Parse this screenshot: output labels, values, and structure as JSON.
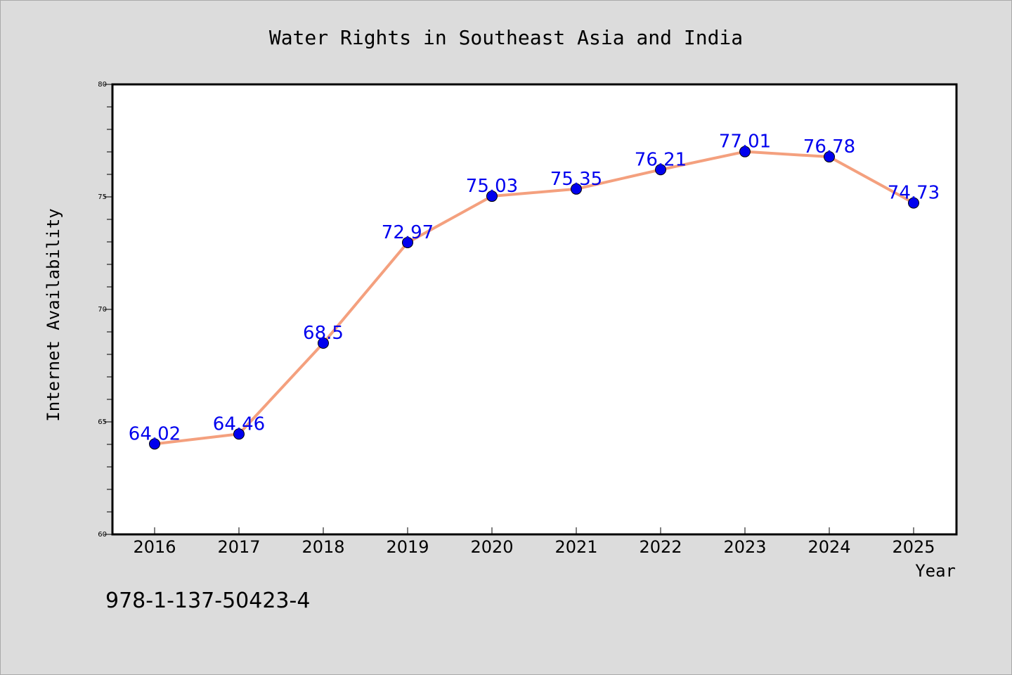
{
  "chart_data": {
    "type": "line",
    "title": "Water Rights in Southeast Asia and India",
    "xlabel": "Year",
    "ylabel": "Internet Availability",
    "categories": [
      "2016",
      "2017",
      "2018",
      "2019",
      "2020",
      "2021",
      "2022",
      "2023",
      "2024",
      "2025"
    ],
    "series": [
      {
        "values": [
          64.02,
          64.46,
          68.5,
          72.97,
          75.03,
          75.35,
          76.21,
          77.01,
          76.78,
          74.73
        ],
        "labels": [
          "64.02",
          "64.46",
          "68.5",
          "72.97",
          "75.03",
          "75.35",
          "76.21",
          "77.01",
          "76.78",
          "74.73"
        ]
      }
    ],
    "ylim": [
      60,
      80
    ],
    "yticks": [
      60,
      65,
      70,
      75,
      80
    ],
    "grid": false,
    "colors": {
      "line": "#f4a07e",
      "marker": "#0000ee",
      "label": "#0000ee",
      "plot_bg": "#ffffff",
      "page_bg": "#dcdcdc"
    }
  },
  "footer": {
    "isbn": "978-1-137-50423-4"
  }
}
